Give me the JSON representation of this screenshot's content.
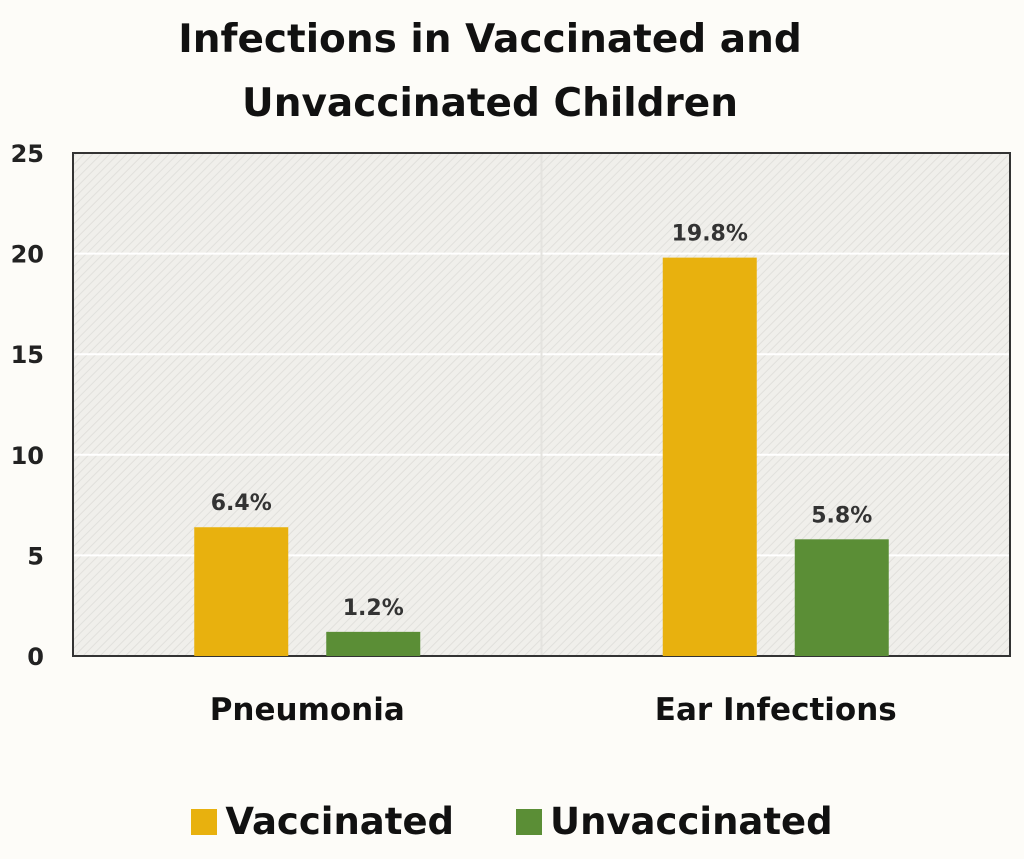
{
  "chart_data": {
    "type": "bar",
    "title_lines": [
      "Infections in Vaccinated and",
      "Unvaccinated Children"
    ],
    "categories": [
      "Pneumonia",
      "Ear Infections"
    ],
    "series": [
      {
        "name": "Vaccinated",
        "values": [
          6.4,
          19.8
        ],
        "labels": [
          "6.4%",
          "19.8%"
        ],
        "color": "#e8b10e"
      },
      {
        "name": "Unvaccinated",
        "values": [
          1.2,
          5.8
        ],
        "labels": [
          "1.2%",
          "5.8%"
        ],
        "color": "#5b8e36"
      }
    ],
    "ylim": [
      0,
      25
    ],
    "yticks": [
      0,
      5,
      10,
      15,
      20,
      25
    ],
    "xlabel": "",
    "ylabel": "",
    "grid": true,
    "legend_position": "bottom"
  }
}
